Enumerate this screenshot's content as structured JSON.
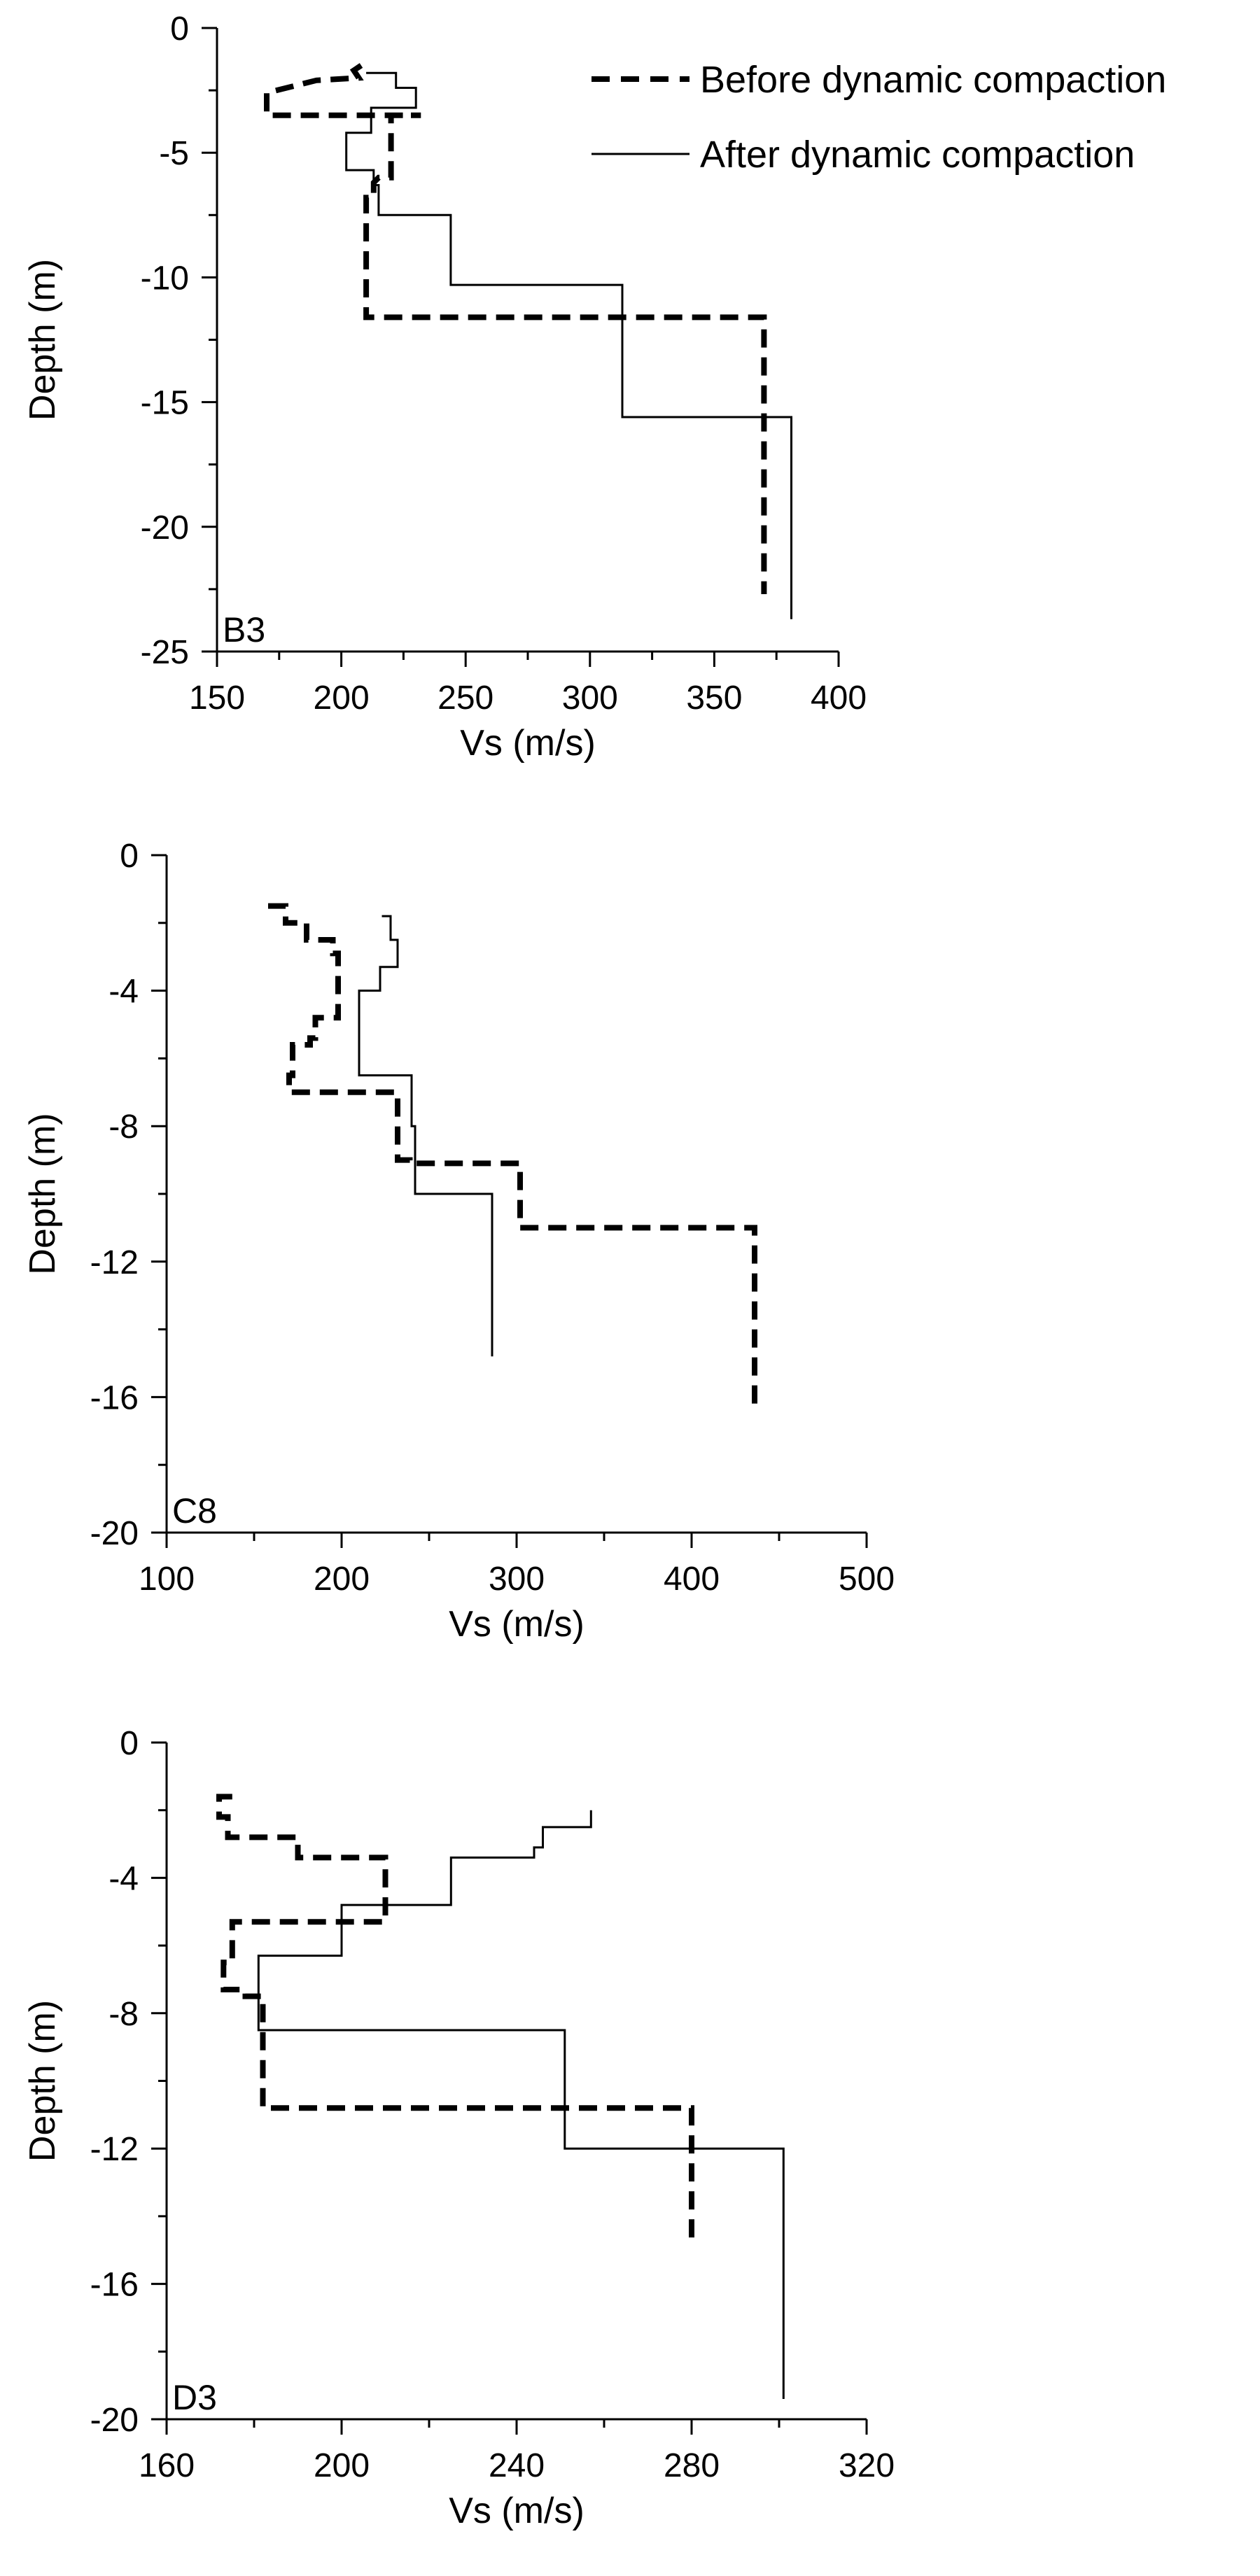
{
  "legend": [
    {
      "label": "Before dynamic compaction",
      "style": "dashed"
    },
    {
      "label": "After dynamic compaction",
      "style": "solid"
    }
  ],
  "chart_data": [
    {
      "type": "line",
      "panel_label": "B3",
      "xlabel": "Vs (m/s)",
      "ylabel": "Depth (m)",
      "xlim": [
        150,
        400
      ],
      "ylim": [
        -25,
        0
      ],
      "xticks": [
        150,
        200,
        250,
        300,
        350,
        400
      ],
      "yticks": [
        0,
        -5,
        -10,
        -15,
        -20,
        -25
      ],
      "series": [
        {
          "name": "Before dynamic compaction",
          "style": "dashed",
          "x": [
            208,
            205,
            207,
            190,
            170,
            170,
            232,
            220,
            220,
            215,
            213,
            213,
            210,
            210,
            370,
            370
          ],
          "y": [
            -1.5,
            -1.7,
            -2.0,
            -2.1,
            -2.6,
            -3.5,
            -3.5,
            -3.5,
            -6.0,
            -6.0,
            -6.2,
            -6.8,
            -6.8,
            -11.6,
            -11.6,
            -22.7
          ]
        },
        {
          "name": "After dynamic compaction",
          "style": "solid",
          "x": [
            210,
            222,
            222,
            230,
            230,
            212,
            212,
            202,
            202,
            213,
            213,
            215,
            215,
            244,
            244,
            313,
            313,
            381,
            381
          ],
          "y": [
            -1.8,
            -1.8,
            -2.4,
            -2.4,
            -3.2,
            -3.2,
            -4.2,
            -4.2,
            -5.7,
            -5.7,
            -6.3,
            -6.3,
            -7.5,
            -7.5,
            -10.3,
            -10.3,
            -15.6,
            -15.6,
            -23.7
          ]
        }
      ]
    },
    {
      "type": "line",
      "panel_label": "C8",
      "xlabel": "Vs (m/s)",
      "ylabel": "Depth (m)",
      "xlim": [
        100,
        500
      ],
      "ylim": [
        -20,
        0
      ],
      "xticks": [
        100,
        200,
        300,
        400,
        500
      ],
      "yticks": [
        0,
        -4,
        -8,
        -12,
        -16,
        -20
      ],
      "series": [
        {
          "name": "Before dynamic compaction",
          "style": "dashed",
          "x": [
            158,
            168,
            168,
            180,
            180,
            195,
            195,
            198,
            198,
            185,
            185,
            182,
            182,
            172,
            172,
            170,
            170,
            232,
            232,
            239,
            239,
            302,
            302,
            436,
            436
          ],
          "y": [
            -1.5,
            -1.5,
            -2.0,
            -2.0,
            -2.5,
            -2.5,
            -2.9,
            -2.9,
            -4.8,
            -4.8,
            -5.4,
            -5.4,
            -5.6,
            -5.6,
            -6.5,
            -6.5,
            -7.0,
            -7.0,
            -9.0,
            -9.0,
            -9.1,
            -9.1,
            -11.0,
            -11.0,
            -16.4
          ]
        },
        {
          "name": "After dynamic compaction",
          "style": "solid",
          "x": [
            223,
            228,
            228,
            232,
            232,
            222,
            222,
            210,
            210,
            240,
            240,
            242,
            242,
            286,
            286
          ],
          "y": [
            -1.8,
            -1.8,
            -2.5,
            -2.5,
            -3.3,
            -3.3,
            -4.0,
            -4.0,
            -6.5,
            -6.5,
            -8.0,
            -8.0,
            -10.0,
            -10.0,
            -14.8
          ]
        }
      ]
    },
    {
      "type": "line",
      "panel_label": "D3",
      "xlabel": "Vs (m/s)",
      "ylabel": "Depth (m)",
      "xlim": [
        160,
        320
      ],
      "ylim": [
        -20,
        0
      ],
      "xticks": [
        160,
        200,
        240,
        280,
        320
      ],
      "yticks": [
        0,
        -4,
        -8,
        -12,
        -16,
        -20
      ],
      "series": [
        {
          "name": "Before dynamic compaction",
          "style": "dashed",
          "x": [
            175,
            172,
            172,
            174,
            174,
            190,
            190,
            210,
            210,
            175,
            175,
            173,
            173,
            178,
            178,
            182,
            182,
            280,
            280
          ],
          "y": [
            -1.6,
            -1.6,
            -2.2,
            -2.2,
            -2.8,
            -2.8,
            -3.4,
            -3.4,
            -5.3,
            -5.3,
            -6.5,
            -6.5,
            -7.3,
            -7.3,
            -7.5,
            -7.5,
            -10.8,
            -10.8,
            -14.8
          ]
        },
        {
          "name": "After dynamic compaction",
          "style": "solid",
          "x": [
            257,
            257,
            246,
            246,
            244,
            244,
            225,
            225,
            200,
            200,
            181,
            181,
            183,
            183,
            251,
            251,
            301,
            301
          ],
          "y": [
            -2.0,
            -2.5,
            -2.5,
            -3.1,
            -3.1,
            -3.4,
            -3.4,
            -4.8,
            -4.8,
            -6.3,
            -6.3,
            -8.5,
            -8.5,
            -8.5,
            -8.5,
            -12.0,
            -12.0,
            -19.4
          ]
        }
      ]
    }
  ]
}
